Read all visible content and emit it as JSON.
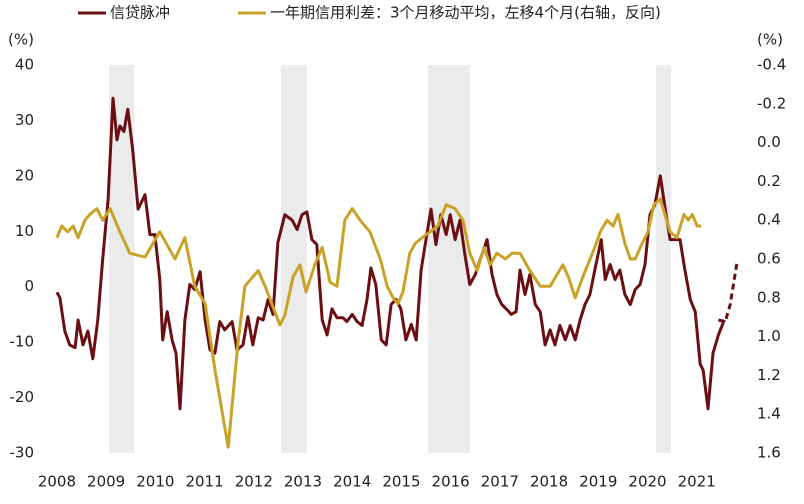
{
  "chart_data": {
    "type": "line",
    "ylabel": "(%)",
    "y2label": "(%)",
    "xlim": [
      2007.9,
      2021.92
    ],
    "xticks": [
      2008,
      2009,
      2010,
      2011,
      2012,
      2013,
      2014,
      2015,
      2016,
      2017,
      2018,
      2019,
      2020,
      2021
    ],
    "ylim": [
      -30,
      40
    ],
    "yticks": [
      -30,
      -20,
      -10,
      0,
      10,
      20,
      30,
      40
    ],
    "y2lim": [
      -0.4,
      1.6
    ],
    "y2_reversed": true,
    "y2ticks": [
      -0.4,
      -0.2,
      {
        "value": 0,
        "label": "0.0"
      },
      0.2,
      0.4,
      0.6,
      0.8,
      {
        "value": 1,
        "label": "1.0"
      },
      1.2,
      1.4,
      1.6
    ],
    "shaded_ranges": [
      [
        2009.06,
        2009.57
      ],
      [
        2012.55,
        2013.08
      ],
      [
        2015.54,
        2016.39
      ],
      [
        2020.17,
        2020.48
      ]
    ],
    "shade_color": "#ebebeb",
    "series": [
      {
        "name": "信贷脉冲",
        "color": "#6b0f12",
        "x": [
          2008.0,
          2008.06,
          2008.16,
          2008.26,
          2008.37,
          2008.43,
          2008.53,
          2008.63,
          2008.73,
          2008.83,
          2008.93,
          2009.04,
          2009.14,
          2009.22,
          2009.28,
          2009.36,
          2009.44,
          2009.54,
          2009.65,
          2009.79,
          2009.89,
          2009.99,
          2010.09,
          2010.15,
          2010.24,
          2010.34,
          2010.42,
          2010.5,
          2010.6,
          2010.7,
          2010.8,
          2010.91,
          2011.01,
          2011.11,
          2011.21,
          2011.31,
          2011.41,
          2011.56,
          2011.66,
          2011.78,
          2011.88,
          2011.98,
          2012.09,
          2012.19,
          2012.29,
          2012.39,
          2012.49,
          2012.63,
          2012.78,
          2012.88,
          2012.98,
          2013.08,
          2013.18,
          2013.28,
          2013.39,
          2013.49,
          2013.59,
          2013.69,
          2013.81,
          2013.89,
          2014.0,
          2014.1,
          2014.2,
          2014.3,
          2014.38,
          2014.48,
          2014.59,
          2014.69,
          2014.79,
          2014.89,
          2014.99,
          2015.09,
          2015.2,
          2015.3,
          2015.4,
          2015.5,
          2015.6,
          2015.7,
          2015.8,
          2015.91,
          2015.99,
          2016.09,
          2016.19,
          2016.29,
          2016.39,
          2016.5,
          2016.6,
          2016.74,
          2016.84,
          2016.94,
          2017.04,
          2017.13,
          2017.23,
          2017.33,
          2017.41,
          2017.51,
          2017.61,
          2017.72,
          2017.82,
          2017.92,
          2018.02,
          2018.12,
          2018.22,
          2018.33,
          2018.43,
          2018.53,
          2018.63,
          2018.73,
          2018.83,
          2018.93,
          2019.06,
          2019.14,
          2019.24,
          2019.34,
          2019.44,
          2019.54,
          2019.65,
          2019.75,
          2019.85,
          2019.95,
          2020.05,
          2020.15,
          2020.26,
          2020.36,
          2020.46,
          2020.56,
          2020.66,
          2020.76,
          2020.87,
          2020.97,
          2021.07,
          2021.13,
          2021.23,
          2021.33,
          2021.44,
          2021.56
        ],
        "values": [
          -1,
          -2,
          -8,
          -10.5,
          -11,
          -6,
          -10.5,
          -8,
          -13,
          -6,
          5,
          15.7,
          34,
          26.5,
          29,
          28,
          32,
          24.7,
          14,
          16.6,
          9.4,
          9.4,
          1.3,
          -9.6,
          -4.5,
          -9.6,
          -12,
          -22,
          -6,
          0.4,
          -0.5,
          2.7,
          -6,
          -11.4,
          -12,
          -6.3,
          -7.8,
          -6.3,
          -11.4,
          -10.5,
          -5.4,
          -10.5,
          -5.6,
          -6,
          -2.3,
          -5,
          8,
          13,
          12,
          10.3,
          13,
          13.5,
          8.5,
          7.6,
          -6,
          -8.7,
          -4,
          -5.6,
          -5.6,
          -6.3,
          -5,
          -6.3,
          -7,
          -2.3,
          3.4,
          0.4,
          -9.6,
          -10.5,
          -3.2,
          -2.3,
          -4,
          -9.6,
          -6.8,
          -9.6,
          3,
          8.5,
          14,
          7.6,
          13,
          9.4,
          13,
          8.5,
          12,
          5.8,
          0.4,
          2.2,
          4.9,
          8.5,
          2.2,
          -1.4,
          -3.2,
          -4,
          -5,
          -4.5,
          3,
          -1.4,
          2.2,
          -3.2,
          -4.5,
          -10.5,
          -7.8,
          -10.5,
          -7,
          -9.6,
          -7,
          -9.6,
          -6,
          -3.2,
          -1.4,
          3,
          8.5,
          1.3,
          4,
          1.3,
          3,
          -1.4,
          -3.2,
          -0.5,
          0.4,
          4,
          13,
          14.8,
          20,
          14,
          8.5,
          8.5,
          8.5,
          3,
          -2.3,
          -4.5,
          -14,
          -15,
          -22,
          -12,
          -8.7,
          -6
        ],
        "forecast_x": [
          2021.44,
          2021.58,
          2021.68,
          2021.82
        ],
        "forecast_values": [
          -6,
          -6.3,
          -3.2,
          4.5
        ]
      },
      {
        "name": "一年期信用利差：3个月移动平均，左移4个月(右轴，反向)",
        "color": "#c9a227",
        "axis": "y2",
        "x": [
          2008.0,
          2008.1,
          2008.22,
          2008.33,
          2008.43,
          2008.57,
          2008.67,
          2008.81,
          2008.93,
          2009.08,
          2009.28,
          2009.48,
          2009.79,
          2010.09,
          2010.4,
          2010.6,
          2010.8,
          2011.01,
          2011.21,
          2011.48,
          2011.68,
          2011.82,
          2012.09,
          2012.23,
          2012.53,
          2012.63,
          2012.8,
          2012.94,
          2013.06,
          2013.24,
          2013.39,
          2013.55,
          2013.69,
          2013.85,
          2014.0,
          2014.16,
          2014.36,
          2014.57,
          2014.71,
          2014.83,
          2014.93,
          2015.03,
          2015.17,
          2015.28,
          2015.42,
          2015.58,
          2015.74,
          2015.91,
          2016.09,
          2016.25,
          2016.39,
          2016.54,
          2016.68,
          2016.8,
          2016.94,
          2017.11,
          2017.25,
          2017.41,
          2017.61,
          2017.82,
          2018.02,
          2018.28,
          2018.39,
          2018.53,
          2018.69,
          2018.93,
          2019.04,
          2019.18,
          2019.3,
          2019.4,
          2019.54,
          2019.65,
          2019.75,
          2019.89,
          2020.01,
          2020.13,
          2020.26,
          2020.46,
          2020.6,
          2020.74,
          2020.83,
          2020.91,
          2021.01,
          2021.09
        ],
        "values": [
          0.49,
          0.43,
          0.46,
          0.43,
          0.49,
          0.4,
          0.37,
          0.34,
          0.4,
          0.34,
          0.46,
          0.57,
          0.59,
          0.46,
          0.6,
          0.49,
          0.74,
          0.83,
          1.17,
          1.57,
          1.03,
          0.74,
          0.66,
          0.74,
          0.94,
          0.89,
          0.69,
          0.63,
          0.77,
          0.63,
          0.54,
          0.72,
          0.74,
          0.4,
          0.34,
          0.4,
          0.46,
          0.6,
          0.74,
          0.8,
          0.83,
          0.77,
          0.57,
          0.52,
          0.49,
          0.46,
          0.43,
          0.32,
          0.34,
          0.4,
          0.57,
          0.66,
          0.54,
          0.63,
          0.57,
          0.6,
          0.57,
          0.57,
          0.66,
          0.74,
          0.74,
          0.63,
          0.69,
          0.8,
          0.69,
          0.54,
          0.46,
          0.4,
          0.43,
          0.37,
          0.52,
          0.6,
          0.6,
          0.52,
          0.46,
          0.32,
          0.29,
          0.46,
          0.49,
          0.37,
          0.4,
          0.37,
          0.43,
          0.43
        ]
      }
    ]
  }
}
